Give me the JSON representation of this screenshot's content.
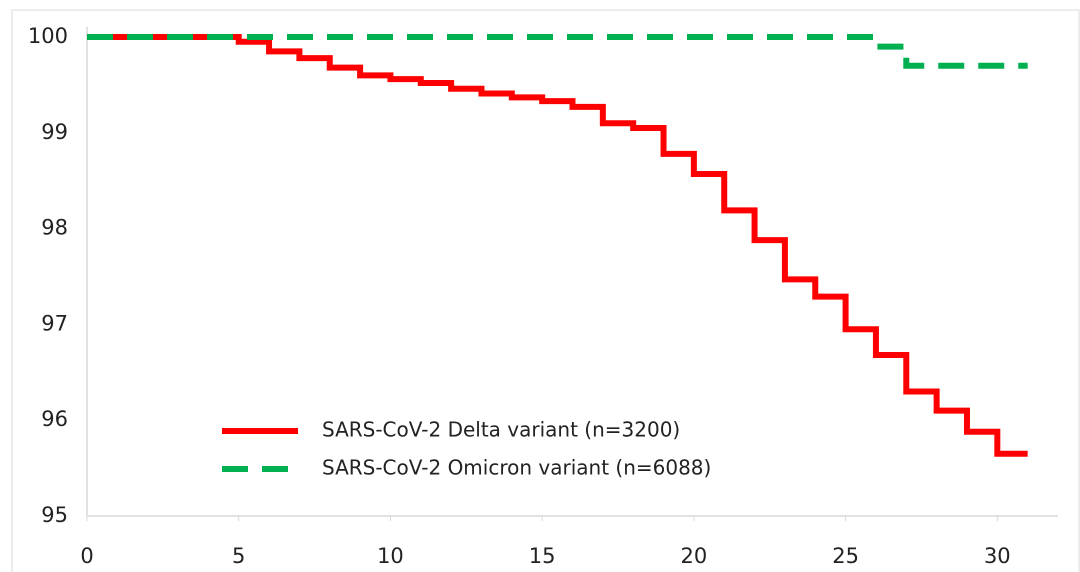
{
  "chart_data": {
    "type": "line",
    "step": "post",
    "x": null,
    "series": [
      {
        "name": "SARS-CoV-2 Delta variant (n=3200)",
        "color": "#ff0000",
        "dash": "solid",
        "x": [
          0,
          5,
          6,
          7,
          8,
          9,
          10,
          11,
          12,
          13,
          14,
          15,
          16,
          17,
          18,
          19,
          20,
          21,
          22,
          23,
          24,
          25,
          26,
          27,
          28,
          29,
          30,
          31
        ],
        "values": [
          100,
          99.95,
          99.85,
          99.78,
          99.68,
          99.6,
          99.56,
          99.52,
          99.46,
          99.41,
          99.37,
          99.33,
          99.27,
          99.1,
          99.05,
          98.78,
          98.57,
          98.19,
          97.88,
          97.47,
          97.29,
          96.95,
          96.68,
          96.3,
          96.1,
          95.88,
          95.65,
          95.65
        ]
      },
      {
        "name": "SARS-CoV-2 Omicron variant (n=6088)",
        "color": "#00b050",
        "dash": "dashed",
        "x": [
          0,
          26,
          27,
          31
        ],
        "values": [
          100,
          99.9,
          99.7,
          99.7
        ]
      }
    ],
    "xlim": [
      0,
      32
    ],
    "xticks": [
      0,
      5,
      10,
      15,
      20,
      25,
      30
    ],
    "ylim": [
      95,
      100
    ],
    "yticks": [
      95,
      96,
      97,
      98,
      99,
      100
    ],
    "grid": false,
    "legend": "bottom"
  }
}
